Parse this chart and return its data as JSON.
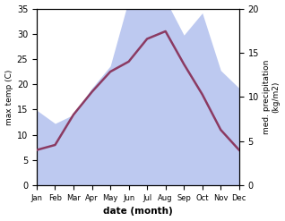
{
  "months": [
    "Jan",
    "Feb",
    "Mar",
    "Apr",
    "May",
    "Jun",
    "Jul",
    "Aug",
    "Sep",
    "Oct",
    "Nov",
    "Dec"
  ],
  "temp": [
    7.0,
    8.0,
    14.0,
    18.5,
    22.5,
    24.5,
    29.0,
    30.5,
    24.0,
    18.0,
    11.0,
    7.0
  ],
  "precip": [
    8.5,
    7.0,
    8.0,
    11.0,
    13.5,
    21.0,
    21.5,
    21.0,
    17.0,
    19.5,
    13.0,
    11.0
  ],
  "temp_color": "#8B3A62",
  "precip_fill_color": "#bdc9f0",
  "xlabel": "date (month)",
  "ylabel_left": "max temp (C)",
  "ylabel_right": "med. precipitation\n(kg/m2)",
  "ylim_left": [
    0,
    35
  ],
  "ylim_right": [
    0,
    20
  ],
  "yticks_left": [
    0,
    5,
    10,
    15,
    20,
    25,
    30,
    35
  ],
  "yticks_right": [
    0,
    5,
    10,
    15,
    20
  ],
  "bg_color": "#ffffff",
  "line_width": 1.8
}
